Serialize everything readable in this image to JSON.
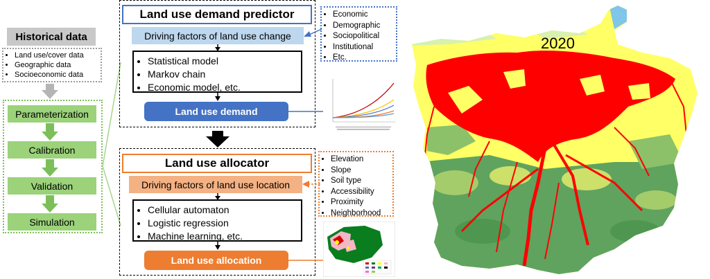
{
  "historical": {
    "title": "Historical data",
    "items": [
      "Land use/cover data",
      "Geographic data",
      "Socioeconomic data"
    ]
  },
  "process_steps": [
    "Parameterization",
    "Calibration",
    "Validation",
    "Simulation"
  ],
  "demand": {
    "title": "Land use demand predictor",
    "factors_label": "Driving factors of land use change",
    "models": [
      "Statistical model",
      "Markov chain",
      "Economic model, etc."
    ],
    "output_label": "Land use demand",
    "factor_types": [
      "Economic",
      "Demographic",
      "Sociopolitical",
      "Institutional",
      "Etc."
    ]
  },
  "allocator": {
    "title": "Land use allocator",
    "factors_label": "Driving factors of land use location",
    "models": [
      "Cellular automaton",
      "Logistic regression",
      "Machine learning, etc."
    ],
    "output_label": "Land use allocation",
    "factor_types": [
      "Elevation",
      "Slope",
      "Soil type",
      "Accessibility",
      "Proximity",
      "Neighborhood"
    ]
  },
  "map": {
    "year": "2020"
  },
  "colors": {
    "blue": "#4472c4",
    "orange": "#ed7d31",
    "green": "#9bd27a",
    "urban": "#ff0000",
    "agri": "#ffff66",
    "forest": "#5fa35f",
    "water": "#7fc6e8"
  }
}
